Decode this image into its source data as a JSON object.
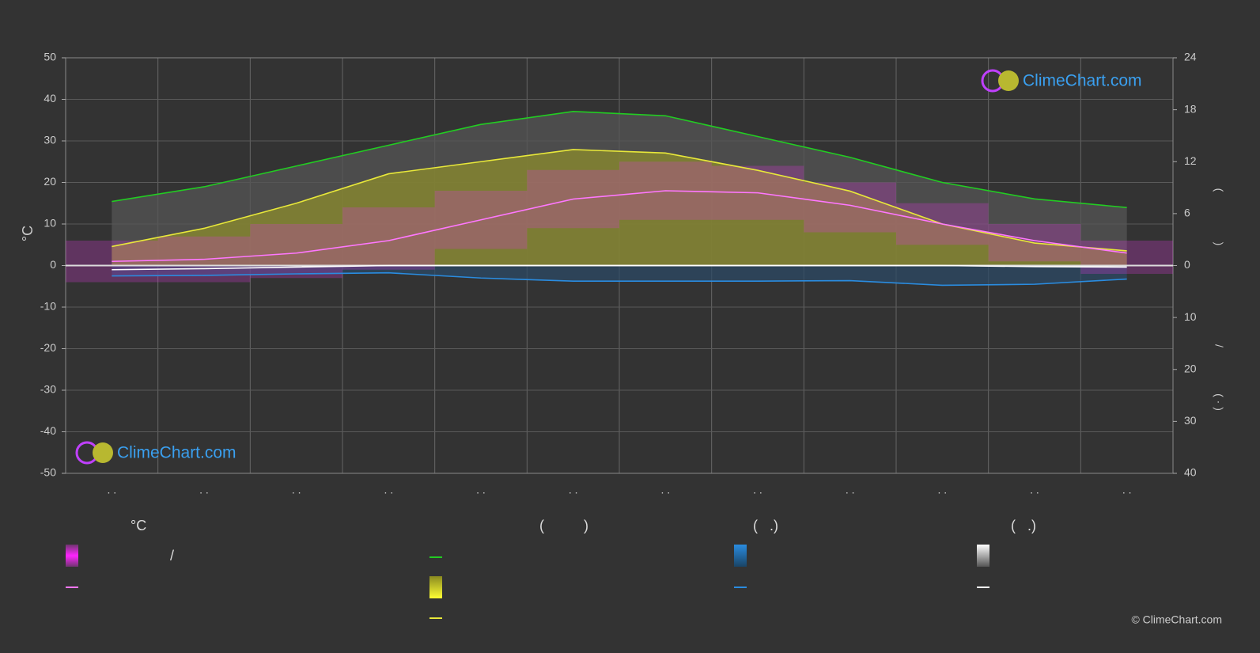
{
  "chart_data": {
    "type": "line",
    "categories": [
      ". .",
      ". .",
      ". .",
      ". .",
      ". .",
      ". .",
      ". .",
      ". .",
      ". .",
      ". .",
      ". .",
      ". ."
    ],
    "ylabel": "°C",
    "y2labels": [
      "(",
      ")",
      "/",
      "(  ·  )"
    ],
    "ylim": [
      -50,
      50
    ],
    "yticks": [
      50,
      40,
      30,
      20,
      10,
      0,
      -10,
      -20,
      -30,
      -40,
      -50
    ],
    "y2lim": [
      -24,
      24
    ],
    "y2ticks": [
      24,
      18,
      12,
      6,
      0
    ],
    "y3lim": [
      -40,
      40
    ],
    "y3_inverted": true,
    "y3ticks": [
      10,
      20,
      30,
      40
    ],
    "grid": true,
    "temp_band": {
      "color": "#d63bd6",
      "values": [
        6,
        7,
        10,
        14,
        18,
        23,
        25,
        24,
        20,
        15,
        10,
        6
      ],
      "lows": [
        -4,
        -4,
        -3,
        -1,
        4,
        9,
        11,
        11,
        8,
        5,
        1,
        -2
      ]
    },
    "series": [
      {
        "color": "#22cc22",
        "axis": "y2",
        "fill": "#555555",
        "values": [
          7.4,
          9.1,
          11.5,
          13.9,
          16.3,
          17.8,
          17.3,
          14.9,
          12.5,
          9.6,
          7.7,
          6.7
        ]
      },
      {
        "color": "#e8e83a",
        "axis": "y2",
        "fill": "#8c8c2c",
        "values": [
          2.2,
          4.3,
          7.2,
          10.6,
          12,
          13.4,
          13,
          11,
          8.6,
          4.8,
          2.6,
          1.7
        ]
      },
      {
        "color": "#ff77ff",
        "axis": "y",
        "values": [
          1,
          1.5,
          3,
          6,
          11,
          16,
          18,
          17.5,
          14.5,
          10,
          6,
          3
        ]
      },
      {
        "color": "#2a8ce0",
        "axis": "y3",
        "fill": "#2c4a66",
        "values": [
          2,
          1.9,
          1.6,
          1.4,
          2.4,
          3,
          3,
          3,
          2.9,
          3.8,
          3.6,
          2.6
        ]
      },
      {
        "color": "#ffffff",
        "axis": "y3",
        "values": [
          0.8,
          0.6,
          0.3,
          0,
          0,
          0,
          0,
          0,
          0,
          0,
          0.2,
          0.3
        ]
      }
    ]
  },
  "legend": {
    "headers": [
      "°C",
      "(          )",
      "(   .)",
      "(   .)"
    ],
    "slash": "/"
  },
  "brand": {
    "logo_top": "ClimeChart.com",
    "logo_bottom": "ClimeChart.com",
    "copyright": "© ClimeChart.com"
  }
}
